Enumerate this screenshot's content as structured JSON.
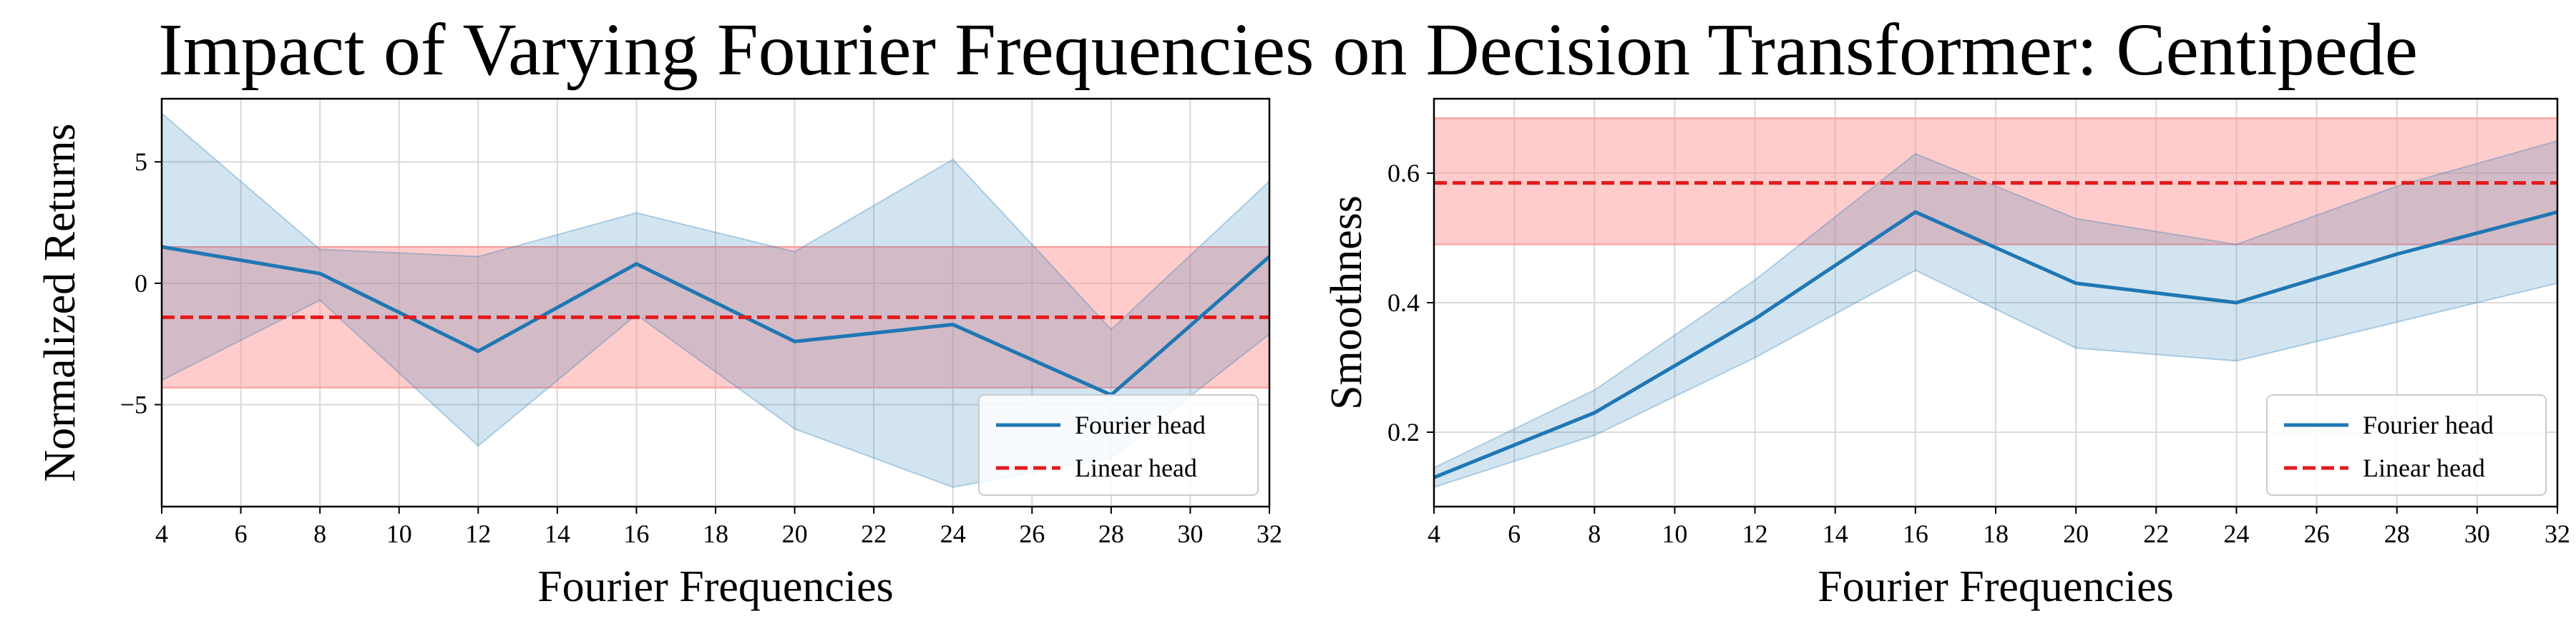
{
  "suptitle": "Impact of Varying Fourier Frequencies on Decision Transformer: Centipede",
  "colors": {
    "fourier": "#1f77b4",
    "fourier_band": "#1f77b4",
    "linear": "#e31a1c",
    "linear_band": "#ff9999",
    "grid": "#d9d9d9"
  },
  "chart_data": [
    {
      "type": "line",
      "xlabel": "Fourier Frequencies",
      "ylabel": "Normalized Returns",
      "xlim": [
        4,
        32
      ],
      "ylim": [
        -9.2,
        7.6
      ],
      "xticks": [
        4,
        6,
        8,
        10,
        12,
        14,
        16,
        18,
        20,
        22,
        24,
        26,
        28,
        30,
        32
      ],
      "yticks": [
        -5,
        0,
        5
      ],
      "grid": true,
      "legend_position": "lower-right",
      "series": [
        {
          "name": "Fourier head",
          "style": "solid",
          "x": [
            4,
            8,
            12,
            16,
            20,
            24,
            28,
            32
          ],
          "y": [
            1.5,
            0.4,
            -2.8,
            0.8,
            -2.4,
            -1.7,
            -4.6,
            1.1
          ],
          "lower": [
            -4.0,
            -0.7,
            -6.7,
            -1.3,
            -6.0,
            -8.4,
            -7.2,
            -2.1
          ],
          "upper": [
            7.0,
            1.4,
            1.1,
            2.9,
            1.3,
            5.1,
            -1.9,
            4.2
          ]
        },
        {
          "name": "Linear head",
          "style": "dashed",
          "x": [
            4,
            32
          ],
          "y": [
            -1.4,
            -1.4
          ],
          "lower": [
            -4.3,
            -4.3
          ],
          "upper": [
            1.5,
            1.5
          ]
        }
      ]
    },
    {
      "type": "line",
      "xlabel": "Fourier Frequencies",
      "ylabel": "Smoothness",
      "xlim": [
        4,
        32
      ],
      "ylim": [
        0.085,
        0.715
      ],
      "xticks": [
        4,
        6,
        8,
        10,
        12,
        14,
        16,
        18,
        20,
        22,
        24,
        26,
        28,
        30,
        32
      ],
      "yticks": [
        0.2,
        0.4,
        0.6
      ],
      "grid": true,
      "legend_position": "lower-right",
      "series": [
        {
          "name": "Fourier head",
          "style": "solid",
          "x": [
            4,
            8,
            12,
            16,
            20,
            24,
            28,
            32
          ],
          "y": [
            0.13,
            0.23,
            0.375,
            0.54,
            0.43,
            0.4,
            0.475,
            0.54
          ],
          "lower": [
            0.115,
            0.195,
            0.315,
            0.45,
            0.33,
            0.31,
            0.37,
            0.43
          ],
          "upper": [
            0.145,
            0.265,
            0.435,
            0.63,
            0.53,
            0.49,
            0.58,
            0.65
          ]
        },
        {
          "name": "Linear head",
          "style": "dashed",
          "x": [
            4,
            32
          ],
          "y": [
            0.585,
            0.585
          ],
          "lower": [
            0.49,
            0.49
          ],
          "upper": [
            0.685,
            0.685
          ]
        }
      ]
    }
  ]
}
